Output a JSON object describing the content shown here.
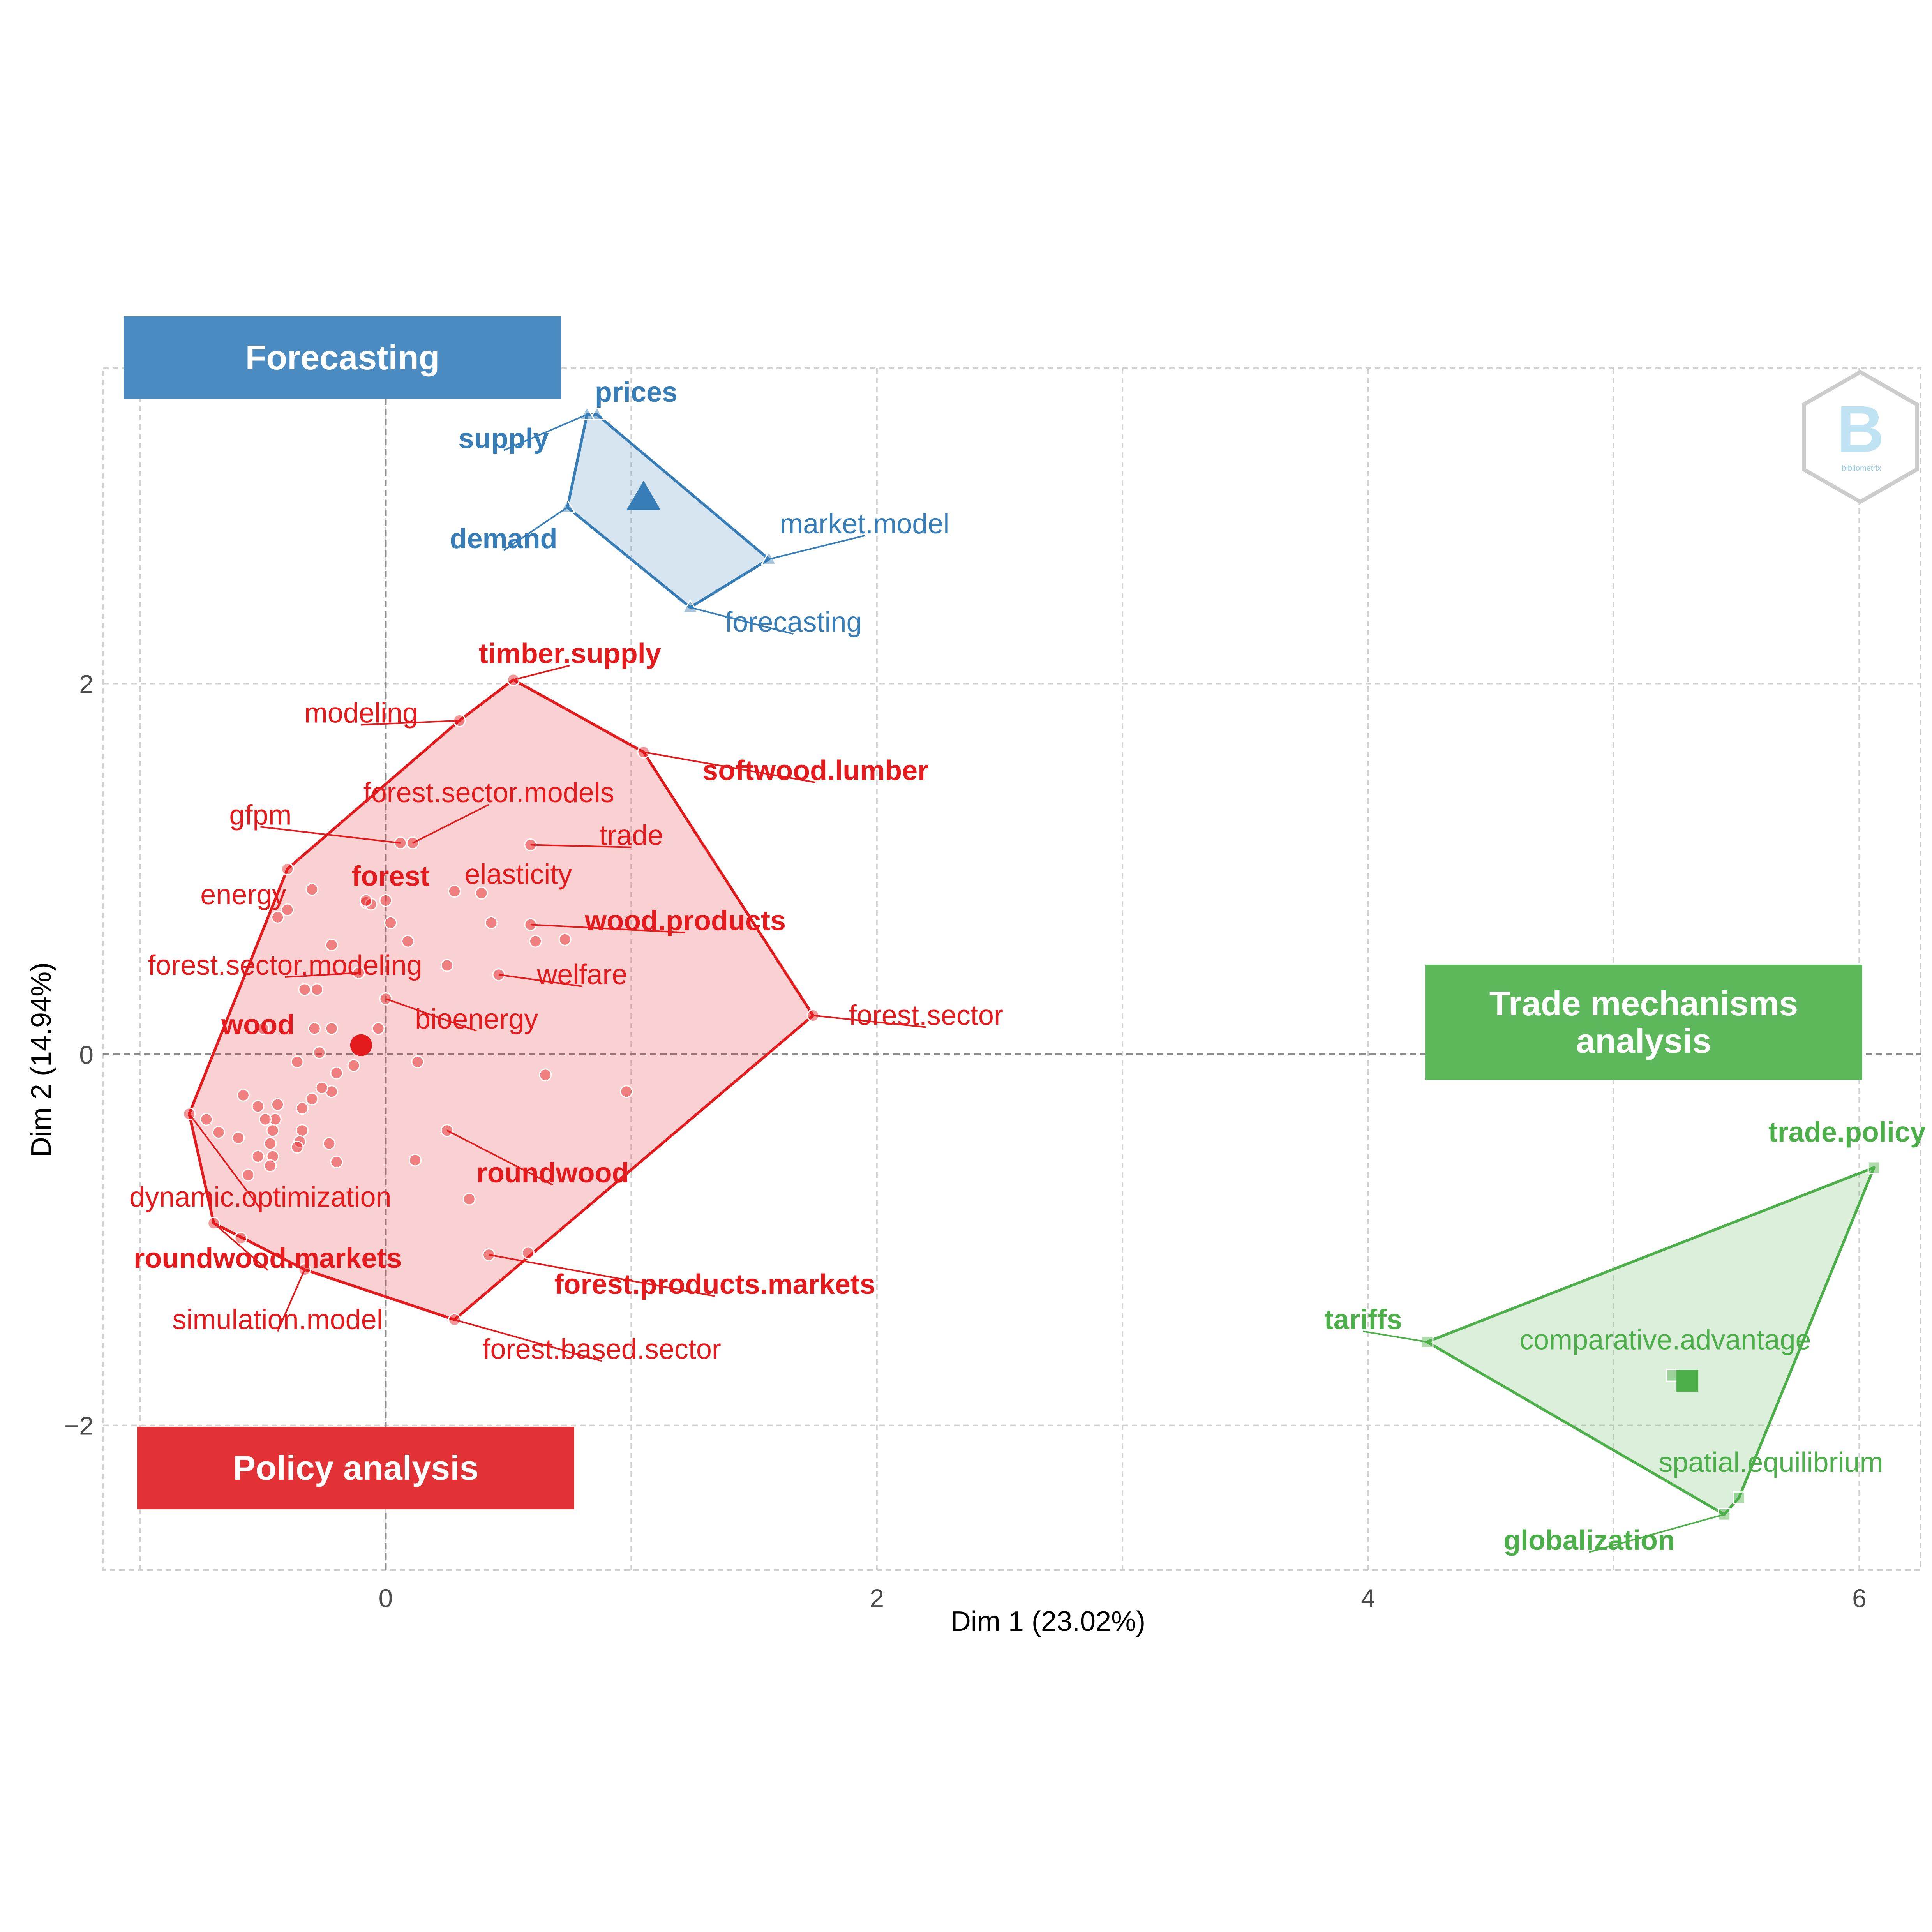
{
  "chart_data": {
    "type": "scatter",
    "xlabel": "Dim 1 (23.02%)",
    "ylabel": "Dim 2 (14.94%)",
    "xlim": [
      -1.15,
      6.25
    ],
    "ylim": [
      -2.78,
      3.7
    ],
    "x_ticks": [
      {
        "value": 0,
        "label": "0"
      },
      {
        "value": 2,
        "label": "2"
      },
      {
        "value": 4,
        "label": "4"
      },
      {
        "value": 6,
        "label": "6"
      }
    ],
    "y_ticks": [
      {
        "value": -2,
        "label": "−2"
      },
      {
        "value": 0,
        "label": "0"
      },
      {
        "value": 2,
        "label": "2"
      }
    ],
    "grid": true,
    "clusters": [
      {
        "label": "Forecasting",
        "color": "#377eb8",
        "box_color": "#4a8bc2",
        "marker": "triangle",
        "centroid": [
          1.05,
          3.0
        ],
        "hull": [
          [
            0.82,
            3.45
          ],
          [
            0.74,
            2.95
          ],
          [
            1.24,
            2.41
          ],
          [
            1.56,
            2.67
          ],
          [
            0.86,
            3.45
          ]
        ],
        "points": [
          {
            "label": "prices",
            "x": 0.86,
            "y": 3.45,
            "bold": true,
            "lx": 1.02,
            "ly": 3.57
          },
          {
            "label": "supply",
            "x": 0.82,
            "y": 3.45,
            "bold": true,
            "lx": 0.48,
            "ly": 3.32
          },
          {
            "label": "demand",
            "x": 0.74,
            "y": 2.95,
            "bold": true,
            "lx": 0.48,
            "ly": 2.78
          },
          {
            "label": "market.model",
            "x": 1.56,
            "y": 2.67,
            "bold": false,
            "lx": 1.95,
            "ly": 2.86
          },
          {
            "label": "forecasting",
            "x": 1.24,
            "y": 2.41,
            "bold": false,
            "lx": 1.66,
            "ly": 2.33
          }
        ]
      },
      {
        "label": "Policy analysis",
        "color": "#e41a1c",
        "box_color": "#e33235",
        "marker": "circle",
        "centroid": [
          -0.1,
          0.05
        ],
        "hull": [
          [
            0.52,
            2.02
          ],
          [
            1.05,
            1.63
          ],
          [
            1.74,
            0.21
          ],
          [
            0.28,
            -1.43
          ],
          [
            -0.33,
            -1.16
          ],
          [
            -0.7,
            -0.91
          ],
          [
            -0.8,
            -0.32
          ],
          [
            -0.4,
            1.0
          ],
          [
            0.3,
            1.8
          ]
        ],
        "points": [
          {
            "label": "timber.supply",
            "x": 0.52,
            "y": 2.02,
            "bold": true,
            "lx": 0.75,
            "ly": 2.16
          },
          {
            "label": "modeling",
            "x": 0.3,
            "y": 1.8,
            "bold": false,
            "lx": -0.1,
            "ly": 1.84
          },
          {
            "label": "softwood.lumber",
            "x": 1.05,
            "y": 1.63,
            "bold": true,
            "lx": 1.75,
            "ly": 1.53
          },
          {
            "label": "forest.sector.models",
            "x": 0.11,
            "y": 1.14,
            "bold": false,
            "lx": 0.42,
            "ly": 1.41
          },
          {
            "label": "gfpm",
            "x": 0.06,
            "y": 1.14,
            "bold": false,
            "lx": -0.51,
            "ly": 1.29
          },
          {
            "label": "trade",
            "x": 0.59,
            "y": 1.13,
            "bold": false,
            "lx": 1.0,
            "ly": 1.18
          },
          {
            "label": "energy",
            "x": -0.4,
            "y": 1.0,
            "bold": false,
            "lx": -0.58,
            "ly": 0.86
          },
          {
            "label": "forest",
            "x": -0.08,
            "y": 0.83,
            "bold": true,
            "lx": 0.02,
            "ly": 0.96
          },
          {
            "label": "elasticity",
            "x": 0.39,
            "y": 0.87,
            "bold": false,
            "lx": 0.54,
            "ly": 0.97
          },
          {
            "label": "wood.products",
            "x": 0.59,
            "y": 0.7,
            "bold": true,
            "lx": 1.22,
            "ly": 0.72
          },
          {
            "label": "forest.sector.modeling",
            "x": -0.11,
            "y": 0.44,
            "bold": false,
            "lx": -0.41,
            "ly": 0.48
          },
          {
            "label": "welfare",
            "x": 0.46,
            "y": 0.43,
            "bold": false,
            "lx": 0.8,
            "ly": 0.43
          },
          {
            "label": "bioenergy",
            "x": 0.0,
            "y": 0.3,
            "bold": false,
            "lx": 0.37,
            "ly": 0.19
          },
          {
            "label": "forest.sector",
            "x": 1.74,
            "y": 0.21,
            "bold": false,
            "lx": 2.2,
            "ly": 0.21
          },
          {
            "label": "wood",
            "x": -0.5,
            "y": 0.14,
            "bold": true,
            "lx": -0.52,
            "ly": 0.16
          },
          {
            "label": "roundwood",
            "x": 0.25,
            "y": -0.41,
            "bold": true,
            "lx": 0.68,
            "ly": -0.64
          },
          {
            "label": "dynamic.optimization",
            "x": -0.8,
            "y": -0.32,
            "bold": false,
            "lx": -0.51,
            "ly": -0.77
          },
          {
            "label": "roundwood.markets",
            "x": -0.7,
            "y": -0.91,
            "bold": true,
            "lx": -0.48,
            "ly": -1.1
          },
          {
            "label": "forest.products.markets",
            "x": 0.42,
            "y": -1.08,
            "bold": true,
            "lx": 1.34,
            "ly": -1.24
          },
          {
            "label": "simulation.model",
            "x": -0.33,
            "y": -1.16,
            "bold": false,
            "lx": -0.44,
            "ly": -1.43
          },
          {
            "label": "forest.based.sector",
            "x": 0.28,
            "y": -1.43,
            "bold": false,
            "lx": 0.88,
            "ly": -1.59
          }
        ],
        "extra_points": [
          [
            -0.3,
            0.89
          ],
          [
            -0.4,
            0.78
          ],
          [
            -0.44,
            0.74
          ],
          [
            -0.08,
            0.82
          ],
          [
            -0.06,
            0.81
          ],
          [
            0.0,
            0.83
          ],
          [
            0.02,
            0.71
          ],
          [
            0.09,
            0.61
          ],
          [
            0.28,
            0.88
          ],
          [
            0.43,
            0.71
          ],
          [
            0.61,
            0.61
          ],
          [
            0.73,
            0.62
          ],
          [
            -0.22,
            0.59
          ],
          [
            -0.33,
            0.35
          ],
          [
            -0.28,
            0.35
          ],
          [
            0.25,
            0.48
          ],
          [
            -0.29,
            0.14
          ],
          [
            -0.22,
            0.14
          ],
          [
            -0.03,
            0.14
          ],
          [
            -0.27,
            0.01
          ],
          [
            -0.36,
            -0.04
          ],
          [
            -0.2,
            -0.1
          ],
          [
            -0.13,
            -0.06
          ],
          [
            -0.22,
            -0.2
          ],
          [
            -0.26,
            -0.18
          ],
          [
            -0.3,
            -0.24
          ],
          [
            -0.34,
            -0.29
          ],
          [
            -0.44,
            -0.27
          ],
          [
            -0.52,
            -0.28
          ],
          [
            -0.58,
            -0.22
          ],
          [
            -0.45,
            -0.35
          ],
          [
            -0.46,
            -0.41
          ],
          [
            -0.47,
            -0.48
          ],
          [
            -0.6,
            -0.45
          ],
          [
            -0.68,
            -0.42
          ],
          [
            -0.73,
            -0.35
          ],
          [
            -0.34,
            -0.41
          ],
          [
            -0.35,
            -0.47
          ],
          [
            -0.36,
            -0.5
          ],
          [
            -0.23,
            -0.48
          ],
          [
            -0.2,
            -0.58
          ],
          [
            -0.46,
            -0.55
          ],
          [
            -0.47,
            -0.6
          ],
          [
            -0.56,
            -0.65
          ],
          [
            -0.49,
            -0.35
          ],
          [
            0.13,
            -0.04
          ],
          [
            0.65,
            -0.11
          ],
          [
            0.98,
            -0.2
          ],
          [
            0.12,
            -0.57
          ],
          [
            0.34,
            -0.78
          ],
          [
            0.58,
            -1.07
          ],
          [
            -0.59,
            -0.99
          ],
          [
            -0.52,
            -0.55
          ]
        ]
      },
      {
        "label": "Trade mechanisms analysis",
        "label_lines": [
          "Trade mechanisms",
          "analysis"
        ],
        "color": "#4daf4a",
        "box_color": "#5cb85a",
        "marker": "square",
        "centroid": [
          5.3,
          -1.76
        ],
        "hull": [
          [
            6.06,
            -0.61
          ],
          [
            5.51,
            -2.39
          ],
          [
            5.45,
            -2.48
          ],
          [
            4.24,
            -1.55
          ]
        ],
        "points": [
          {
            "label": "trade.policy",
            "x": 6.06,
            "y": -0.61,
            "bold": true,
            "lx": 5.95,
            "ly": -0.42
          },
          {
            "label": "tariffs",
            "x": 4.24,
            "y": -1.55,
            "bold": true,
            "lx": 3.98,
            "ly": -1.43
          },
          {
            "label": "comparative.advantage",
            "x": 5.24,
            "y": -1.73,
            "bold": false,
            "lx": 5.21,
            "ly": -1.54
          },
          {
            "label": "spatial.equilibrium",
            "x": 5.51,
            "y": -2.39,
            "bold": false,
            "lx": 5.64,
            "ly": -2.2
          },
          {
            "label": "globalization",
            "x": 5.45,
            "y": -2.48,
            "bold": true,
            "lx": 4.9,
            "ly": -2.62
          }
        ]
      }
    ]
  },
  "logo": {
    "text": "bibliometrix",
    "glyph": "B"
  }
}
